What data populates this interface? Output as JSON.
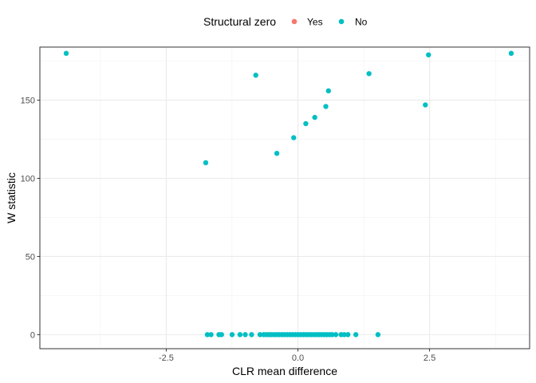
{
  "chart_data": {
    "type": "scatter",
    "xlabel": "CLR mean difference",
    "ylabel": "W statistic",
    "xlim": [
      -4.9,
      4.4
    ],
    "ylim": [
      -9,
      184
    ],
    "x_ticks": [
      -2.5,
      0.0,
      2.5
    ],
    "x_tick_labels": [
      "-2.5",
      "0.0",
      "2.5"
    ],
    "y_ticks": [
      0,
      50,
      100,
      150
    ],
    "y_tick_labels": [
      "0",
      "50",
      "100",
      "150"
    ],
    "grid": true,
    "legend": {
      "title": "Structural zero",
      "position": "top",
      "entries": [
        {
          "label": "Yes",
          "color": "#F8766D"
        },
        {
          "label": "No",
          "color": "#00BFC4"
        }
      ]
    },
    "series": [
      {
        "name": "Yes",
        "color": "#F8766D",
        "points": []
      },
      {
        "name": "No",
        "color": "#00BFC4",
        "points": [
          {
            "x": -4.4,
            "y": 180
          },
          {
            "x": -0.8,
            "y": 166
          },
          {
            "x": -1.75,
            "y": 110
          },
          {
            "x": -0.4,
            "y": 116
          },
          {
            "x": -0.08,
            "y": 126
          },
          {
            "x": 0.15,
            "y": 135
          },
          {
            "x": 0.32,
            "y": 139
          },
          {
            "x": 0.53,
            "y": 146
          },
          {
            "x": 0.58,
            "y": 156
          },
          {
            "x": 1.35,
            "y": 167
          },
          {
            "x": 2.42,
            "y": 147
          },
          {
            "x": 2.48,
            "y": 179
          },
          {
            "x": 4.05,
            "y": 180
          },
          {
            "x": -1.72,
            "y": 0
          },
          {
            "x": -1.65,
            "y": 0
          },
          {
            "x": -1.5,
            "y": 0
          },
          {
            "x": -1.45,
            "y": 0
          },
          {
            "x": -1.25,
            "y": 0
          },
          {
            "x": -1.1,
            "y": 0
          },
          {
            "x": -1.0,
            "y": 0
          },
          {
            "x": -0.88,
            "y": 0
          },
          {
            "x": -0.72,
            "y": 0
          },
          {
            "x": -0.65,
            "y": 0
          },
          {
            "x": -0.6,
            "y": 0
          },
          {
            "x": -0.55,
            "y": 0
          },
          {
            "x": -0.5,
            "y": 0
          },
          {
            "x": -0.45,
            "y": 0
          },
          {
            "x": -0.4,
            "y": 0
          },
          {
            "x": -0.35,
            "y": 0
          },
          {
            "x": -0.3,
            "y": 0
          },
          {
            "x": -0.25,
            "y": 0
          },
          {
            "x": -0.2,
            "y": 0
          },
          {
            "x": -0.15,
            "y": 0
          },
          {
            "x": -0.1,
            "y": 0
          },
          {
            "x": -0.05,
            "y": 0
          },
          {
            "x": 0.0,
            "y": 0
          },
          {
            "x": 0.05,
            "y": 0
          },
          {
            "x": 0.1,
            "y": 0
          },
          {
            "x": 0.15,
            "y": 0
          },
          {
            "x": 0.2,
            "y": 0
          },
          {
            "x": 0.25,
            "y": 0
          },
          {
            "x": 0.3,
            "y": 0
          },
          {
            "x": 0.35,
            "y": 0
          },
          {
            "x": 0.4,
            "y": 0
          },
          {
            "x": 0.45,
            "y": 0
          },
          {
            "x": 0.5,
            "y": 0
          },
          {
            "x": 0.55,
            "y": 0
          },
          {
            "x": 0.6,
            "y": 0
          },
          {
            "x": 0.65,
            "y": 0
          },
          {
            "x": 0.72,
            "y": 0
          },
          {
            "x": 0.82,
            "y": 0
          },
          {
            "x": 0.88,
            "y": 0
          },
          {
            "x": 0.95,
            "y": 0
          },
          {
            "x": 1.1,
            "y": 0
          },
          {
            "x": 1.52,
            "y": 0
          }
        ]
      }
    ]
  }
}
